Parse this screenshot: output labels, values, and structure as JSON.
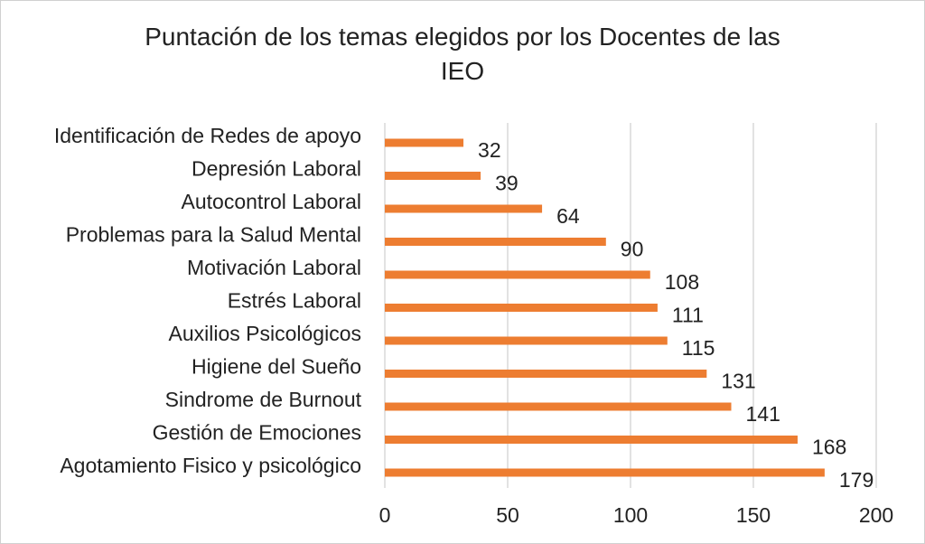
{
  "chart_data": {
    "type": "bar",
    "orientation": "horizontal",
    "title_lines": [
      "Puntación de los temas elegidos por los Docentes de las",
      "IEO"
    ],
    "categories": [
      "Identificación de Redes de apoyo",
      "Depresión Laboral",
      "Autocontrol Laboral",
      "Problemas para la Salud Mental",
      "Motivación Laboral",
      "Estrés Laboral",
      "Auxilios Psicológicos",
      "Higiene del Sueño",
      "Sindrome de Burnout",
      "Gestión de Emociones",
      "Agotamiento Fisico y psicológico"
    ],
    "values": [
      32,
      39,
      64,
      90,
      108,
      111,
      115,
      131,
      141,
      168,
      179
    ],
    "xlim": [
      0,
      200
    ],
    "xticks": [
      0,
      50,
      100,
      150,
      200
    ],
    "xlabel": "",
    "ylabel": "",
    "grid": "vertical",
    "legend": "none",
    "data_labels": true,
    "bar_color": "#ED7D31",
    "grid_color": "#d9d9d9"
  }
}
